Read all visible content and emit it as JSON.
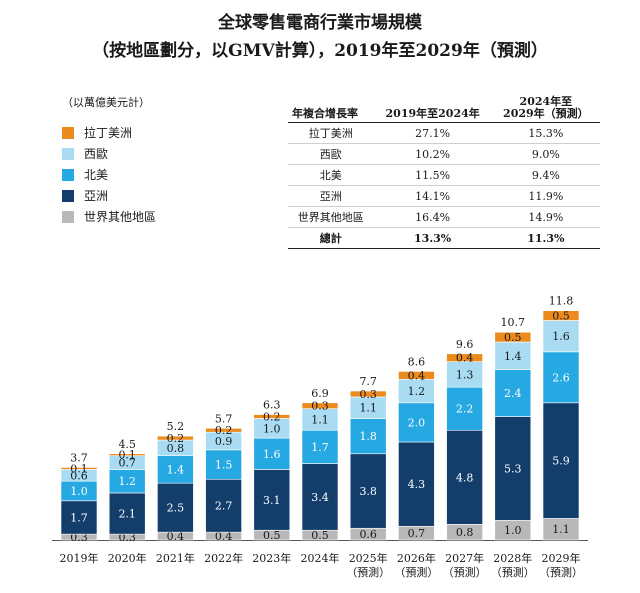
{
  "title_line1": "全球零售電商行業市場規模",
  "title_line2": "（按地區劃分，以GMV計算），2019年至2029年（預測）",
  "unit_label": "（以萬億美元計）",
  "legend": [
    {
      "label": "拉丁美洲",
      "color": "#ec8a1e"
    },
    {
      "label": "西歐",
      "color": "#a9dcf3"
    },
    {
      "label": "北美",
      "color": "#26a8e2"
    },
    {
      "label": "亞洲",
      "color": "#133d6b"
    },
    {
      "label": "世界其他地區",
      "color": "#b8b8b8"
    }
  ],
  "cagr_table": {
    "headers": [
      "年複合增長率",
      "2019年至2024年",
      "2024年至\n2029年（預測）"
    ],
    "rows": [
      {
        "region": "拉丁美洲",
        "p1": "27.1%",
        "p2": "15.3%"
      },
      {
        "region": "西歐",
        "p1": "10.2%",
        "p2": "9.0%"
      },
      {
        "region": "北美",
        "p1": "11.5%",
        "p2": "9.4%"
      },
      {
        "region": "亞洲",
        "p1": "14.1%",
        "p2": "11.9%"
      },
      {
        "region": "世界其他地區",
        "p1": "16.4%",
        "p2": "14.9%"
      }
    ],
    "total": {
      "region": "總計",
      "p1": "13.3%",
      "p2": "11.3%"
    }
  },
  "chart_data": {
    "type": "bar",
    "stacked": true,
    "categories": [
      "2019年",
      "2020年",
      "2021年",
      "2022年",
      "2023年",
      "2024年",
      "2025年\n（預測）",
      "2026年\n（預測）",
      "2027年\n（預測）",
      "2028年\n（預測）",
      "2029年\n（預測）"
    ],
    "totals": [
      "3.7",
      "4.5",
      "5.2",
      "5.7",
      "6.3",
      "6.9",
      "7.7",
      "8.6",
      "9.6",
      "10.7",
      "11.8"
    ],
    "series": [
      {
        "name": "世界其他地區",
        "color": "#b8b8b8",
        "values": [
          0.3,
          0.3,
          0.4,
          0.4,
          0.5,
          0.5,
          0.6,
          0.7,
          0.8,
          1.0,
          1.1
        ]
      },
      {
        "name": "亞洲",
        "color": "#133d6b",
        "values": [
          1.7,
          2.1,
          2.5,
          2.7,
          3.1,
          3.4,
          3.8,
          4.3,
          4.8,
          5.3,
          5.9
        ]
      },
      {
        "name": "北美",
        "color": "#26a8e2",
        "values": [
          1.0,
          1.2,
          1.4,
          1.5,
          1.6,
          1.7,
          1.8,
          2.0,
          2.2,
          2.4,
          2.6
        ]
      },
      {
        "name": "西歐",
        "color": "#a9dcf3",
        "values": [
          0.6,
          0.7,
          0.8,
          0.9,
          1.0,
          1.1,
          1.1,
          1.2,
          1.3,
          1.4,
          1.6
        ]
      },
      {
        "name": "拉丁美洲",
        "color": "#ec8a1e",
        "values": [
          0.1,
          0.1,
          0.2,
          0.2,
          0.2,
          0.3,
          0.3,
          0.4,
          0.4,
          0.5,
          0.5
        ]
      }
    ],
    "ylim": [
      0,
      12
    ],
    "grid": false,
    "legend_position": "top-left"
  }
}
